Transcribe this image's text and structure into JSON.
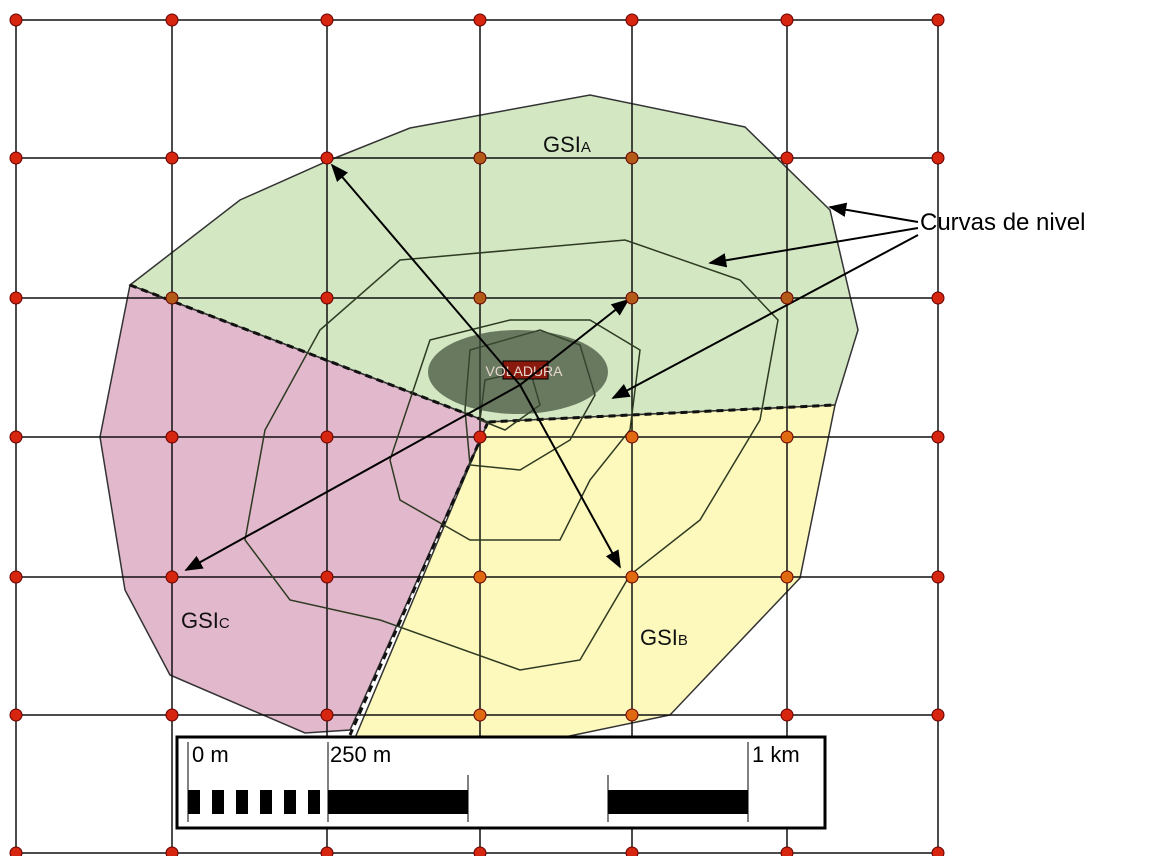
{
  "zones": [
    {
      "label": "GSI",
      "sub": "A"
    },
    {
      "label": "GSI",
      "sub": "B"
    },
    {
      "label": "GSI",
      "sub": "C"
    }
  ],
  "center_label": "VOLADURA",
  "annotation": "Curvas de nivel",
  "scale_labels": [
    "0 m",
    "250 m",
    "1 km"
  ]
}
